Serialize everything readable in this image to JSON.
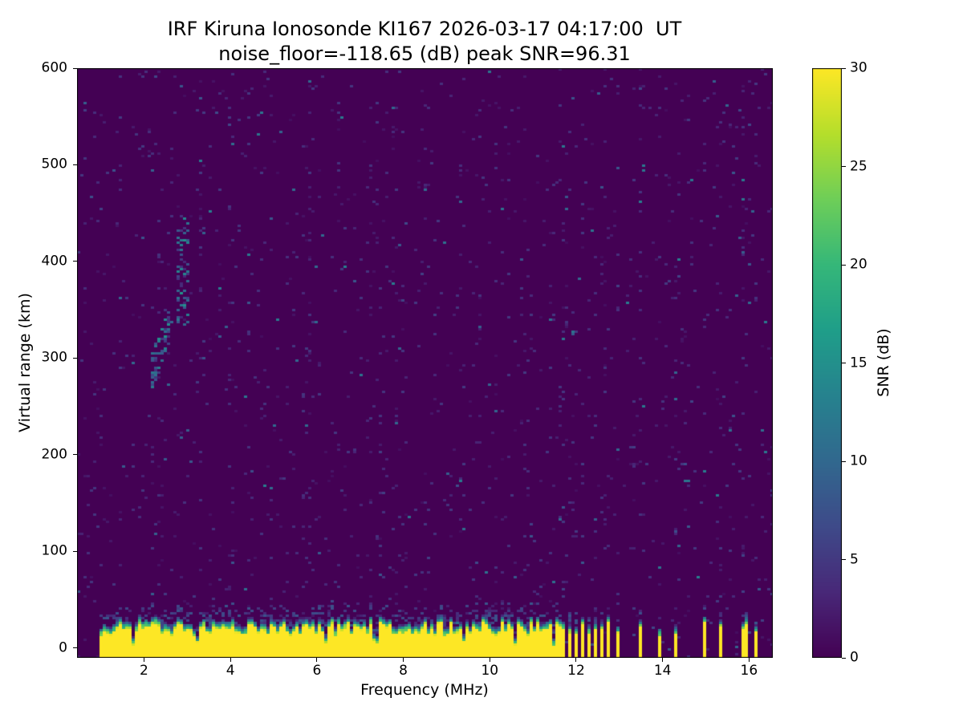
{
  "figure": {
    "background": "#ffffff"
  },
  "chart_data": {
    "type": "heatmap",
    "title": "IRF Kiruna Ionosonde KI167 2026-03-17 04:17:00  UT",
    "subtitle": "noise_floor=-118.65 (dB) peak SNR=96.31",
    "station": "IRF Kiruna Ionosonde KI167",
    "timestamp_ut": "2026-03-17 04:17:00 UT",
    "noise_floor_db": -118.65,
    "peak_snr_db": 96.31,
    "xlabel": "Frequency (MHz)",
    "ylabel": "Virtual range (km)",
    "colorbar_label": "SNR (dB)",
    "xlim": [
      0.45,
      16.55
    ],
    "ylim": [
      -10,
      600
    ],
    "xticks": [
      2,
      4,
      6,
      8,
      10,
      12,
      14,
      16
    ],
    "yticks": [
      0,
      100,
      200,
      300,
      400,
      500,
      600
    ],
    "colorbar_range": [
      0,
      30
    ],
    "colorbar_ticks": [
      0,
      5,
      10,
      15,
      20,
      25,
      30
    ],
    "colormap": "viridis",
    "grid": false,
    "legend": "colorbar-right",
    "colors": {
      "background_cell": "#440154",
      "saturated_cell": "#fde725",
      "axes": "#000000",
      "viridis_stops": [
        "#440154",
        "#482878",
        "#3e4a89",
        "#31688e",
        "#26828e",
        "#1f9e89",
        "#35b779",
        "#6ece58",
        "#b5de2b",
        "#fde725"
      ]
    },
    "features": {
      "noise_speckles": {
        "density": 0.024,
        "snr_db_range": [
          1,
          5
        ],
        "vertical_streaking": true
      },
      "ground_clutter_band": {
        "freq_range_mhz": [
          0.95,
          11.65
        ],
        "top_edge_km_range": [
          20,
          34
        ],
        "core_snr_db": 30,
        "description": "continuous saturated near-range band with ragged teal upper edge"
      },
      "pulsed_band": {
        "freq_range_mhz": [
          11.65,
          16.4
        ],
        "bar_freqs_mhz": [
          11.7,
          11.85,
          12.0,
          12.15,
          12.3,
          12.45,
          12.6,
          12.75,
          12.95,
          13.5,
          13.95,
          14.3,
          15.0,
          15.35,
          15.9,
          16.15
        ],
        "bar_halfwidth_mhz": 0.045,
        "description": "intermittent saturated transmission bars above 11.65 MHz"
      },
      "ionospheric_echo_segments": [
        {
          "freq_mhz": [
            2.15,
            2.6
          ],
          "range_km_start": 282,
          "range_km_end": 332,
          "halfwidth_km": 20,
          "fill_density": 0.45,
          "snr_db_range": [
            3,
            16
          ]
        },
        {
          "freq_mhz": [
            2.78,
            3.06
          ],
          "range_km_start": 388,
          "range_km_end": 388,
          "halfwidth_km": 58,
          "fill_density": 0.32,
          "snr_db_range": [
            3,
            16
          ]
        }
      ]
    }
  }
}
